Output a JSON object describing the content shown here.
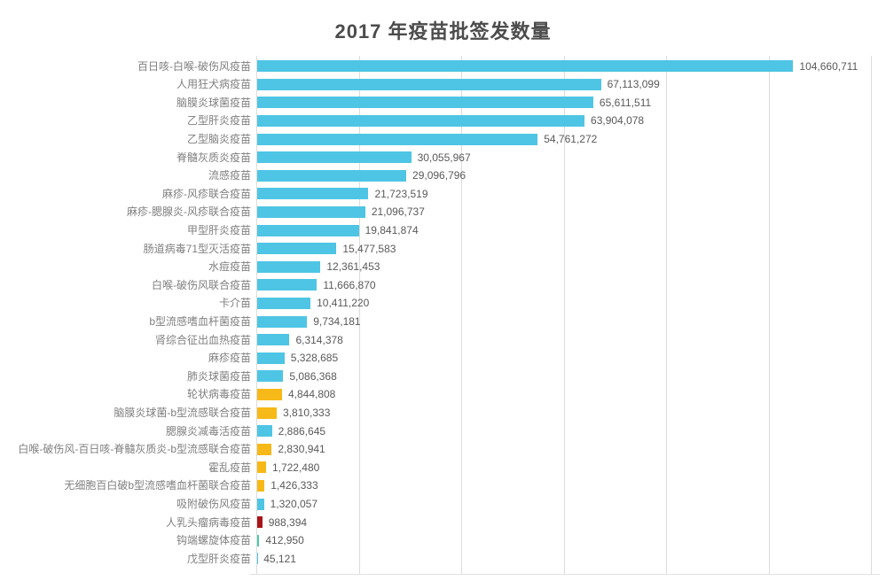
{
  "header": {
    "title": "2017 年疫苗批签发数量"
  },
  "chart_data": {
    "type": "bar",
    "orientation": "horizontal",
    "title": "2017 年疫苗批签发数量",
    "xlim": [
      0,
      120000000
    ],
    "gridline_step": 20000000,
    "grid": true,
    "legend": "none",
    "axis_tick_labels_visible": false,
    "palette": {
      "cyan": "#4ec5e4",
      "orange": "#f6b918",
      "red": "#a8141a",
      "teal": "#4fc8b0"
    },
    "categories": [
      "百日咳-白喉-破伤风疫苗",
      "人用狂犬病疫苗",
      "脑膜炎球菌疫苗",
      "乙型肝炎疫苗",
      "乙型脑炎疫苗",
      "脊髓灰质炎疫苗",
      "流感疫苗",
      "麻疹-风疹联合疫苗",
      "麻疹-腮腺炎-风疹联合疫苗",
      "甲型肝炎疫苗",
      "肠道病毒71型灭活疫苗",
      "水痘疫苗",
      "白喉-破伤风联合疫苗",
      "卡介苗",
      "b型流感嗜血杆菌疫苗",
      "肾综合征出血热疫苗",
      "麻疹疫苗",
      "肺炎球菌疫苗",
      "轮状病毒疫苗",
      "脑膜炎球菌-b型流感联合疫苗",
      "腮腺炎减毒活疫苗",
      "白喉-破伤风-百日咳-脊髓灰质炎-b型流感联合疫苗",
      "霍乱疫苗",
      "无细胞百白破b型流感嗜血杆菌联合疫苗",
      "吸附破伤风疫苗",
      "人乳头瘤病毒疫苗",
      "钩端螺旋体疫苗",
      "戊型肝炎疫苗"
    ],
    "values": [
      104660711,
      67113099,
      65611511,
      63904078,
      54761272,
      30055967,
      29096796,
      21723519,
      21096737,
      19841874,
      15477583,
      12361453,
      11666870,
      10411220,
      9734181,
      6314378,
      5328685,
      5086368,
      4844808,
      3810333,
      2886645,
      2830941,
      1722480,
      1426333,
      1320057,
      988394,
      412950,
      45121
    ],
    "value_labels": [
      "104,660,711",
      "67,113,099",
      "65,611,511",
      "63,904,078",
      "54,761,272",
      "30,055,967",
      "29,096,796",
      "21,723,519",
      "21,096,737",
      "19,841,874",
      "15,477,583",
      "12,361,453",
      "11,666,870",
      "10,411,220",
      "9,734,181",
      "6,314,378",
      "5,328,685",
      "5,086,368",
      "4,844,808",
      "3,810,333",
      "2,886,645",
      "2,830,941",
      "1,722,480",
      "1,426,333",
      "1,320,057",
      "988,394",
      "412,950",
      "45,121"
    ],
    "bar_colors": [
      "cyan",
      "cyan",
      "cyan",
      "cyan",
      "cyan",
      "cyan",
      "cyan",
      "cyan",
      "cyan",
      "cyan",
      "cyan",
      "cyan",
      "cyan",
      "cyan",
      "cyan",
      "cyan",
      "cyan",
      "cyan",
      "orange",
      "orange",
      "cyan",
      "orange",
      "orange",
      "orange",
      "cyan",
      "red",
      "teal",
      "cyan"
    ]
  }
}
